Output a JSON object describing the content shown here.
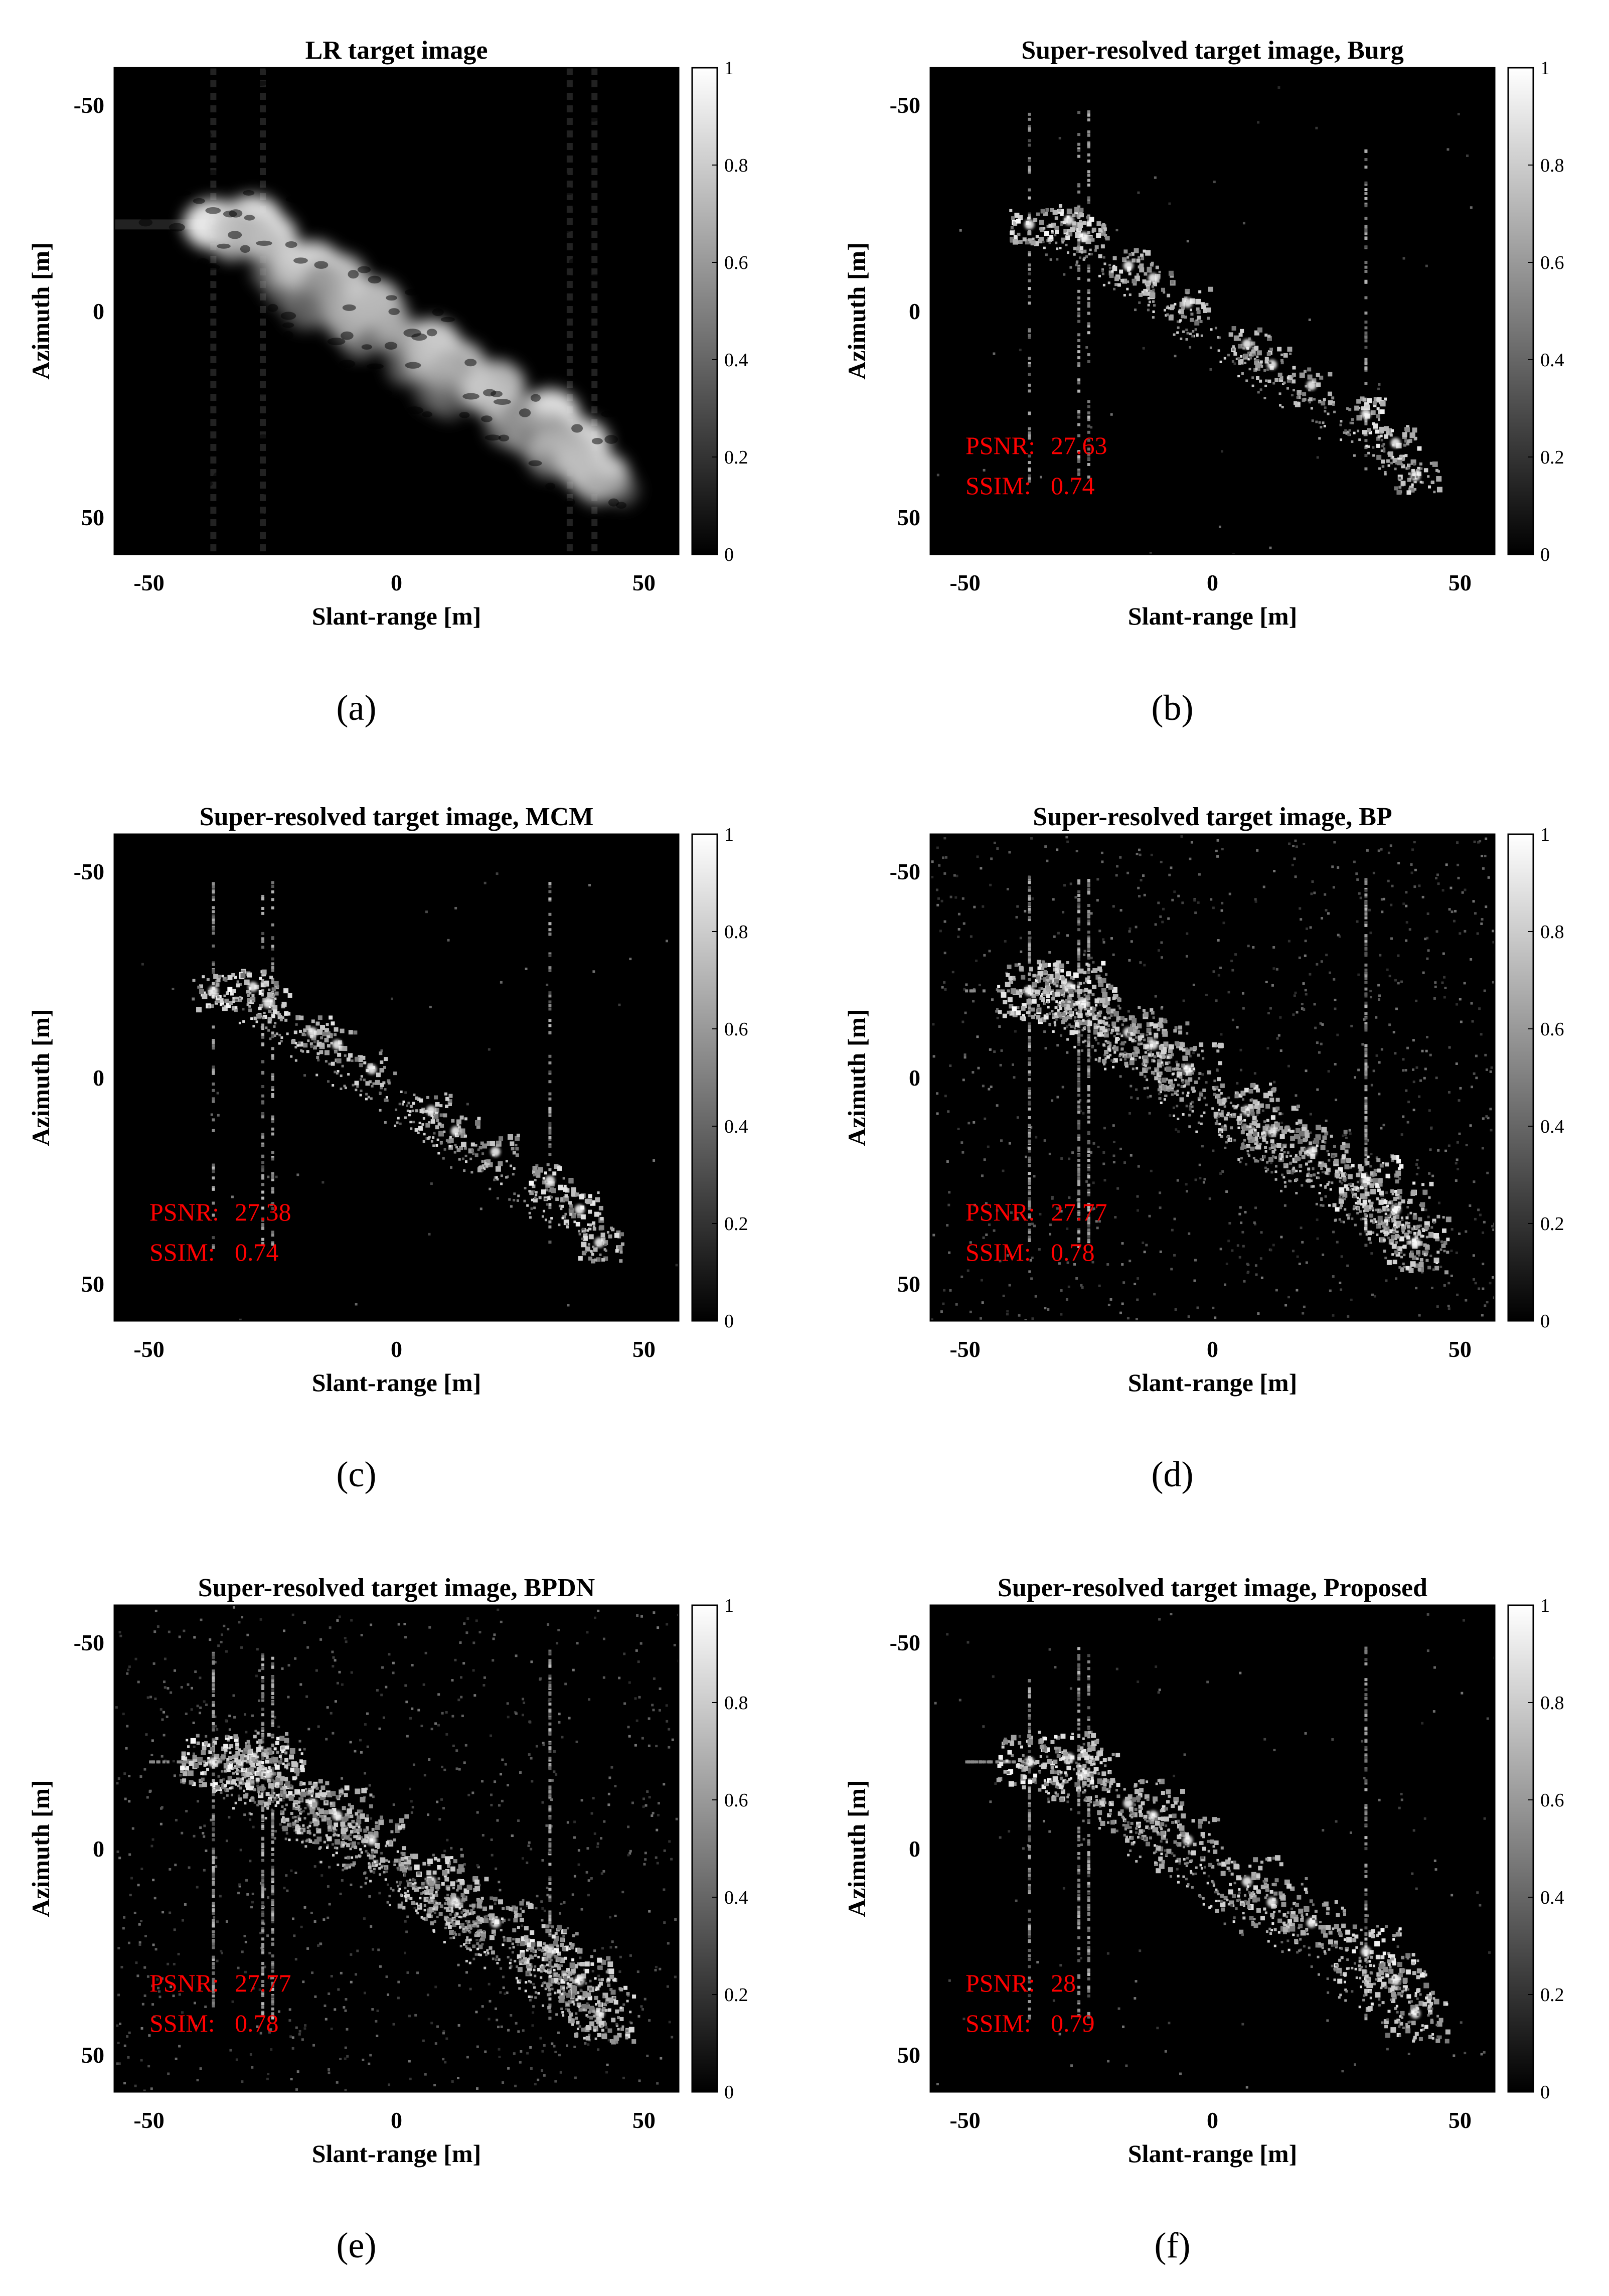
{
  "panels": [
    {
      "id": "a",
      "caption": "(a)",
      "title": "LR target image",
      "xlabel": "Slant-range [m]",
      "ylabel": "Azimuth [m]",
      "psnr_label": "",
      "psnr_value": "",
      "ssim_label": "",
      "ssim_value": "",
      "style": "lr"
    },
    {
      "id": "b",
      "caption": "(b)",
      "title": "Super-resolved target image, Burg",
      "xlabel": "Slant-range [m]",
      "ylabel": "Azimuth [m]",
      "psnr_label": "PSNR:",
      "psnr_value": "27.63",
      "ssim_label": "SSIM:",
      "ssim_value": "0.74",
      "style": "sparse"
    },
    {
      "id": "c",
      "caption": "(c)",
      "title": "Super-resolved target image, MCM",
      "xlabel": "Slant-range [m]",
      "ylabel": "Azimuth [m]",
      "psnr_label": "PSNR:",
      "psnr_value": "27.38",
      "ssim_label": "SSIM:",
      "ssim_value": "0.74",
      "style": "sparse"
    },
    {
      "id": "d",
      "caption": "(d)",
      "title": "Super-resolved target image, BP",
      "xlabel": "Slant-range [m]",
      "ylabel": "Azimuth [m]",
      "psnr_label": "PSNR:",
      "psnr_value": "27.77",
      "ssim_label": "SSIM:",
      "ssim_value": "0.78",
      "style": "dense"
    },
    {
      "id": "e",
      "caption": "(e)",
      "title": "Super-resolved target image, BPDN",
      "xlabel": "Slant-range [m]",
      "ylabel": "Azimuth [m]",
      "psnr_label": "PSNR:",
      "psnr_value": "27.77",
      "ssim_label": "SSIM:",
      "ssim_value": "0.78",
      "style": "dense"
    },
    {
      "id": "f",
      "caption": "(f)",
      "title": "Super-resolved target image, Proposed",
      "xlabel": "Slant-range [m]",
      "ylabel": "Azimuth [m]",
      "psnr_label": "PSNR:",
      "psnr_value": "28",
      "ssim_label": "SSIM:",
      "ssim_value": "0.79",
      "style": "proposed"
    }
  ],
  "chart_data": {
    "type": "heatmap",
    "xlim": [
      -57,
      57
    ],
    "ylim": [
      -59,
      59
    ],
    "y_reversed": true,
    "xticks": [
      "-50",
      "0",
      "50"
    ],
    "yticks": [
      "-50",
      "0",
      "50"
    ],
    "xtick_values": [
      -50,
      0,
      50
    ],
    "ytick_values": [
      -50,
      0,
      50
    ],
    "colorbar_ticks": [
      "0",
      "0.2",
      "0.4",
      "0.6",
      "0.8",
      "1"
    ],
    "colorbar_values": [
      0,
      0.2,
      0.4,
      0.6,
      0.8,
      1
    ],
    "colormap": "gray",
    "grid": false,
    "target_scatterers": [
      {
        "x": -37,
        "y": -21,
        "v": 1.0
      },
      {
        "x": -29,
        "y": -22,
        "v": 0.95
      },
      {
        "x": -26,
        "y": -18,
        "v": 0.85
      },
      {
        "x": -17,
        "y": -11,
        "v": 0.8
      },
      {
        "x": -12,
        "y": -8,
        "v": 0.7
      },
      {
        "x": -5,
        "y": -2,
        "v": 0.7
      },
      {
        "x": 7,
        "y": 8,
        "v": 0.8
      },
      {
        "x": 12,
        "y": 13,
        "v": 0.7
      },
      {
        "x": 20,
        "y": 18,
        "v": 0.65
      },
      {
        "x": 31,
        "y": 25,
        "v": 0.95
      },
      {
        "x": 37,
        "y": 32,
        "v": 0.9
      },
      {
        "x": 41,
        "y": 40,
        "v": 0.8
      }
    ]
  }
}
